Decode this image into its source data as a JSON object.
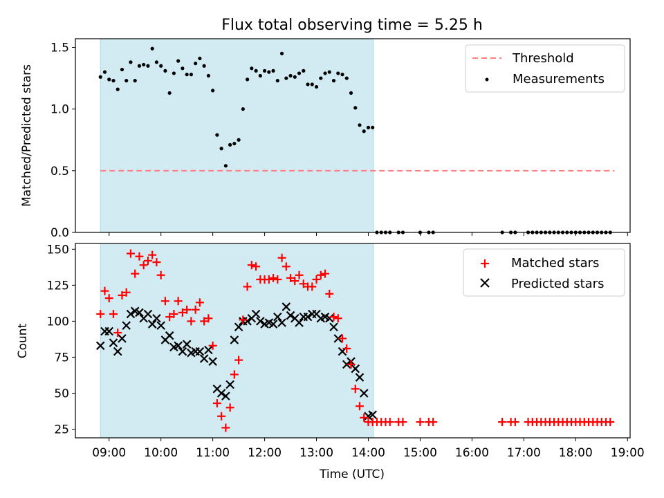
{
  "chart_data": {
    "title": "Flux total observing time = 5.25 h",
    "shaded_region": {
      "start": "08:50",
      "end": "14:06",
      "color": "#add8e6"
    },
    "top": {
      "type": "scatter",
      "ylabel": "Matched/Predicted stars",
      "ylim": [
        0,
        1.57
      ],
      "yticks": [
        "0.0",
        "0.5",
        "1.0",
        "1.5"
      ],
      "yticks_values": [
        0,
        0.5,
        1.0,
        1.5
      ],
      "threshold": {
        "name": "Threshold",
        "value": 0.5,
        "x_start": "08:50",
        "x_end": "18:45",
        "color": "#ff7f7f"
      },
      "measurements": {
        "name": "Measurements",
        "color": "#000000",
        "points": [
          [
            "08:50",
            1.26
          ],
          [
            "08:55",
            1.3
          ],
          [
            "09:00",
            1.24
          ],
          [
            "09:05",
            1.23
          ],
          [
            "09:10",
            1.16
          ],
          [
            "09:15",
            1.32
          ],
          [
            "09:20",
            1.23
          ],
          [
            "09:25",
            1.38
          ],
          [
            "09:30",
            1.23
          ],
          [
            "09:35",
            1.35
          ],
          [
            "09:40",
            1.36
          ],
          [
            "09:45",
            1.35
          ],
          [
            "09:50",
            1.49
          ],
          [
            "09:55",
            1.38
          ],
          [
            "10:00",
            1.35
          ],
          [
            "10:05",
            1.31
          ],
          [
            "10:10",
            1.13
          ],
          [
            "10:15",
            1.29
          ],
          [
            "10:20",
            1.39
          ],
          [
            "10:25",
            1.33
          ],
          [
            "10:30",
            1.28
          ],
          [
            "10:35",
            1.28
          ],
          [
            "10:40",
            1.37
          ],
          [
            "10:45",
            1.41
          ],
          [
            "10:50",
            1.35
          ],
          [
            "10:55",
            1.27
          ],
          [
            "11:00",
            1.15
          ],
          [
            "11:05",
            0.79
          ],
          [
            "11:10",
            0.68
          ],
          [
            "11:15",
            0.54
          ],
          [
            "11:20",
            0.71
          ],
          [
            "11:25",
            0.72
          ],
          [
            "11:30",
            0.75
          ],
          [
            "11:35",
            1.0
          ],
          [
            "11:40",
            1.24
          ],
          [
            "11:45",
            1.33
          ],
          [
            "11:50",
            1.31
          ],
          [
            "11:55",
            1.27
          ],
          [
            "12:00",
            1.31
          ],
          [
            "12:05",
            1.3
          ],
          [
            "12:10",
            1.31
          ],
          [
            "12:15",
            1.23
          ],
          [
            "12:20",
            1.45
          ],
          [
            "12:25",
            1.25
          ],
          [
            "12:30",
            1.27
          ],
          [
            "12:35",
            1.26
          ],
          [
            "12:40",
            1.29
          ],
          [
            "12:45",
            1.31
          ],
          [
            "12:50",
            1.2
          ],
          [
            "12:55",
            1.2
          ],
          [
            "13:00",
            1.18
          ],
          [
            "13:05",
            1.25
          ],
          [
            "13:10",
            1.29
          ],
          [
            "13:15",
            1.3
          ],
          [
            "13:20",
            1.23
          ],
          [
            "13:25",
            1.29
          ],
          [
            "13:30",
            1.28
          ],
          [
            "13:35",
            1.25
          ],
          [
            "13:40",
            1.13
          ],
          [
            "13:45",
            1.01
          ],
          [
            "13:50",
            0.87
          ],
          [
            "13:55",
            0.82
          ],
          [
            "14:00",
            0.85
          ],
          [
            "14:05",
            0.85
          ],
          [
            "14:10",
            0
          ],
          [
            "14:15",
            0
          ],
          [
            "14:20",
            0
          ],
          [
            "14:25",
            0
          ],
          [
            "14:35",
            0
          ],
          [
            "14:40",
            0
          ],
          [
            "15:00",
            0
          ],
          [
            "15:10",
            0
          ],
          [
            "15:15",
            0
          ],
          [
            "16:35",
            0
          ],
          [
            "16:45",
            0
          ],
          [
            "16:50",
            0
          ],
          [
            "17:05",
            0
          ],
          [
            "17:10",
            0
          ],
          [
            "17:15",
            0
          ],
          [
            "17:20",
            0
          ],
          [
            "17:25",
            0
          ],
          [
            "17:30",
            0
          ],
          [
            "17:35",
            0
          ],
          [
            "17:40",
            0
          ],
          [
            "17:45",
            0
          ],
          [
            "17:50",
            0
          ],
          [
            "17:55",
            0
          ],
          [
            "18:00",
            0
          ],
          [
            "18:05",
            0
          ],
          [
            "18:10",
            0
          ],
          [
            "18:15",
            0
          ],
          [
            "18:20",
            0
          ],
          [
            "18:25",
            0
          ],
          [
            "18:30",
            0
          ],
          [
            "18:35",
            0
          ],
          [
            "18:40",
            0
          ]
        ]
      }
    },
    "bottom": {
      "type": "scatter",
      "xlabel": "Time (UTC)",
      "ylabel": "Count",
      "ylim": [
        19,
        154
      ],
      "yticks": [
        "25",
        "50",
        "75",
        "100",
        "125",
        "150"
      ],
      "yticks_values": [
        25,
        50,
        75,
        100,
        125,
        150
      ],
      "xticks": [
        "09:00",
        "10:00",
        "11:00",
        "12:00",
        "13:00",
        "14:00",
        "15:00",
        "16:00",
        "17:00",
        "18:00",
        "19:00"
      ],
      "xlim": [
        "08:21",
        "19:03"
      ],
      "matched": {
        "name": "Matched stars",
        "color": "#ff0000",
        "points": [
          [
            "08:50",
            105
          ],
          [
            "08:55",
            121
          ],
          [
            "09:00",
            116
          ],
          [
            "09:05",
            105
          ],
          [
            "09:10",
            92
          ],
          [
            "09:15",
            118
          ],
          [
            "09:20",
            120
          ],
          [
            "09:25",
            147
          ],
          [
            "09:30",
            133
          ],
          [
            "09:35",
            145
          ],
          [
            "09:40",
            139
          ],
          [
            "09:45",
            142
          ],
          [
            "09:50",
            146
          ],
          [
            "09:55",
            141
          ],
          [
            "10:00",
            132
          ],
          [
            "10:05",
            114
          ],
          [
            "10:10",
            103
          ],
          [
            "10:15",
            105
          ],
          [
            "10:20",
            114
          ],
          [
            "10:25",
            106
          ],
          [
            "10:30",
            108
          ],
          [
            "10:35",
            100
          ],
          [
            "10:40",
            108
          ],
          [
            "10:45",
            113
          ],
          [
            "10:50",
            100
          ],
          [
            "10:55",
            102
          ],
          [
            "11:00",
            83
          ],
          [
            "11:05",
            43
          ],
          [
            "11:10",
            34
          ],
          [
            "11:15",
            26
          ],
          [
            "11:20",
            40
          ],
          [
            "11:25",
            63
          ],
          [
            "11:30",
            73
          ],
          [
            "11:35",
            101
          ],
          [
            "11:40",
            124
          ],
          [
            "11:45",
            139
          ],
          [
            "11:50",
            138
          ],
          [
            "11:55",
            129
          ],
          [
            "12:00",
            129
          ],
          [
            "12:05",
            129
          ],
          [
            "12:10",
            130
          ],
          [
            "12:15",
            129
          ],
          [
            "12:20",
            144
          ],
          [
            "12:25",
            138
          ],
          [
            "12:30",
            130
          ],
          [
            "12:35",
            128
          ],
          [
            "12:40",
            132
          ],
          [
            "12:45",
            126
          ],
          [
            "12:50",
            124
          ],
          [
            "12:55",
            124
          ],
          [
            "13:00",
            129
          ],
          [
            "13:05",
            132
          ],
          [
            "13:10",
            133
          ],
          [
            "13:15",
            119
          ],
          [
            "13:20",
            103
          ],
          [
            "13:25",
            102
          ],
          [
            "13:30",
            88
          ],
          [
            "13:35",
            81
          ],
          [
            "13:40",
            70
          ],
          [
            "13:45",
            53
          ],
          [
            "13:50",
            41
          ],
          [
            "13:55",
            33
          ],
          [
            "14:00",
            30
          ],
          [
            "14:05",
            30
          ],
          [
            "14:10",
            30
          ],
          [
            "14:15",
            30
          ],
          [
            "14:20",
            30
          ],
          [
            "14:25",
            30
          ],
          [
            "14:35",
            30
          ],
          [
            "14:40",
            30
          ],
          [
            "15:00",
            30
          ],
          [
            "15:10",
            30
          ],
          [
            "15:15",
            30
          ],
          [
            "16:35",
            30
          ],
          [
            "16:45",
            30
          ],
          [
            "16:50",
            30
          ],
          [
            "17:05",
            30
          ],
          [
            "17:10",
            30
          ],
          [
            "17:15",
            30
          ],
          [
            "17:20",
            30
          ],
          [
            "17:25",
            30
          ],
          [
            "17:30",
            30
          ],
          [
            "17:35",
            30
          ],
          [
            "17:40",
            30
          ],
          [
            "17:45",
            30
          ],
          [
            "17:50",
            30
          ],
          [
            "17:55",
            30
          ],
          [
            "18:00",
            30
          ],
          [
            "18:05",
            30
          ],
          [
            "18:10",
            30
          ],
          [
            "18:15",
            30
          ],
          [
            "18:20",
            30
          ],
          [
            "18:25",
            30
          ],
          [
            "18:30",
            30
          ],
          [
            "18:35",
            30
          ],
          [
            "18:40",
            30
          ]
        ]
      },
      "predicted": {
        "name": "Predicted stars",
        "color": "#000000",
        "points": [
          [
            "08:50",
            83
          ],
          [
            "08:55",
            93
          ],
          [
            "09:00",
            93
          ],
          [
            "09:05",
            85
          ],
          [
            "09:10",
            79
          ],
          [
            "09:15",
            88
          ],
          [
            "09:20",
            97
          ],
          [
            "09:25",
            105
          ],
          [
            "09:30",
            107
          ],
          [
            "09:35",
            106
          ],
          [
            "09:40",
            102
          ],
          [
            "09:45",
            105
          ],
          [
            "09:50",
            98
          ],
          [
            "09:55",
            102
          ],
          [
            "10:00",
            97
          ],
          [
            "10:05",
            87
          ],
          [
            "10:10",
            90
          ],
          [
            "10:15",
            82
          ],
          [
            "10:20",
            83
          ],
          [
            "10:25",
            79
          ],
          [
            "10:30",
            84
          ],
          [
            "10:35",
            78
          ],
          [
            "10:40",
            79
          ],
          [
            "10:45",
            79
          ],
          [
            "10:50",
            74
          ],
          [
            "10:55",
            80
          ],
          [
            "11:00",
            72
          ],
          [
            "11:05",
            53
          ],
          [
            "11:10",
            50
          ],
          [
            "11:15",
            48
          ],
          [
            "11:20",
            56
          ],
          [
            "11:25",
            87
          ],
          [
            "11:30",
            96
          ],
          [
            "11:35",
            100
          ],
          [
            "11:40",
            100
          ],
          [
            "11:45",
            102
          ],
          [
            "11:50",
            105
          ],
          [
            "11:55",
            100
          ],
          [
            "12:00",
            98
          ],
          [
            "12:05",
            99
          ],
          [
            "12:10",
            98
          ],
          [
            "12:15",
            103
          ],
          [
            "12:20",
            99
          ],
          [
            "12:25",
            110
          ],
          [
            "12:30",
            104
          ],
          [
            "12:35",
            102
          ],
          [
            "12:40",
            99
          ],
          [
            "12:45",
            103
          ],
          [
            "12:50",
            103
          ],
          [
            "12:55",
            105
          ],
          [
            "13:00",
            105
          ],
          [
            "13:05",
            102
          ],
          [
            "13:10",
            103
          ],
          [
            "13:15",
            102
          ],
          [
            "13:20",
            96
          ],
          [
            "13:25",
            88
          ],
          [
            "13:30",
            79
          ],
          [
            "13:35",
            70
          ],
          [
            "13:40",
            72
          ],
          [
            "13:45",
            67
          ],
          [
            "13:50",
            61
          ],
          [
            "13:55",
            50
          ],
          [
            "14:00",
            34
          ],
          [
            "14:05",
            35
          ]
        ]
      }
    }
  }
}
